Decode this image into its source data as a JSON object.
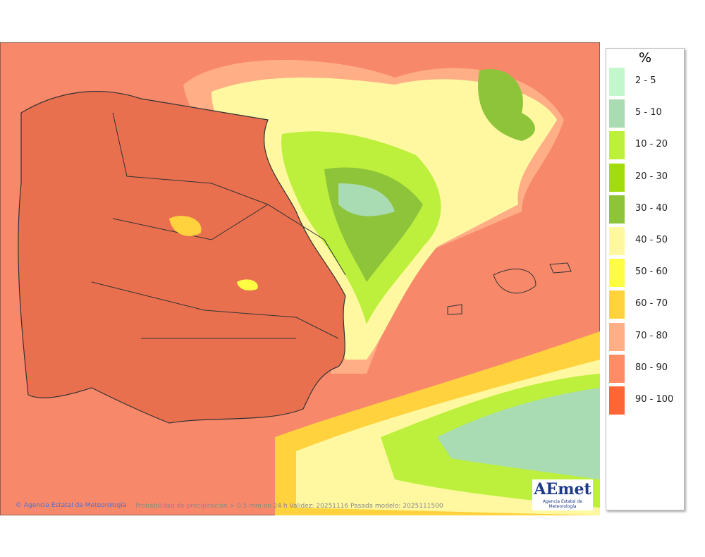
{
  "legend": {
    "title": "%",
    "items": [
      {
        "label": "2 - 5",
        "color": "#c2f7cc"
      },
      {
        "label": "5 - 10",
        "color": "#a9dcb2"
      },
      {
        "label": "10 - 20",
        "color": "#bdf03c"
      },
      {
        "label": "20 - 30",
        "color": "#a2dc0c"
      },
      {
        "label": "30 - 40",
        "color": "#8ec43a"
      },
      {
        "label": "40 - 50",
        "color": "#fff8a0"
      },
      {
        "label": "50 - 60",
        "color": "#fffc44"
      },
      {
        "label": "60 - 70",
        "color": "#ffd23e"
      },
      {
        "label": "70 - 80",
        "color": "#ffae86"
      },
      {
        "label": "80 - 90",
        "color": "#ff8c64"
      },
      {
        "label": "90 - 100",
        "color": "#ff6636"
      }
    ]
  },
  "footer": {
    "credit": "© Agencia Estatal de Meteorología",
    "caption": "Probabilidad de precipitación > 0.5 mm en 24 h Validez: 20251116 Pasada modelo: 2025111500"
  },
  "logo": {
    "text": "AEmet",
    "subtitle": "Agencia Estatal de Meteorología"
  }
}
